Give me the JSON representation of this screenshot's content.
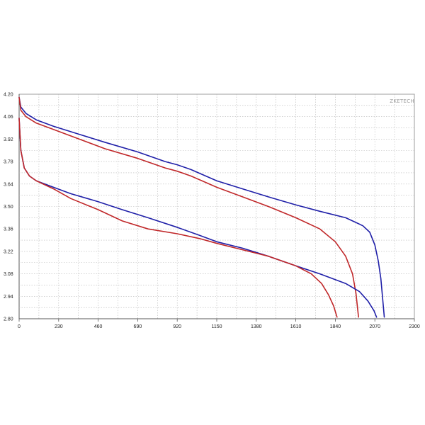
{
  "chart_data": {
    "type": "line",
    "title": "",
    "xlabel": "",
    "ylabel": "",
    "watermark": "ZKETECH",
    "xlim": [
      0,
      2300
    ],
    "ylim": [
      2.8,
      4.2
    ],
    "x_ticks": [
      "0",
      "230",
      "460",
      "690",
      "920",
      "1150",
      "1380",
      "1610",
      "1840",
      "2070",
      "2300"
    ],
    "y_ticks": [
      "4.20",
      "4.06",
      "3.92",
      "3.78",
      "3.64",
      "3.50",
      "3.36",
      "3.22",
      "3.08",
      "2.94",
      "2.80"
    ],
    "grid": true,
    "legend": "none",
    "colors": {
      "blue": "#1f1fa8",
      "red": "#c0282a"
    },
    "series": [
      {
        "color": "blue",
        "points": [
          [
            0,
            4.18
          ],
          [
            10,
            4.12
          ],
          [
            40,
            4.08
          ],
          [
            100,
            4.04
          ],
          [
            200,
            4.0
          ],
          [
            350,
            3.95
          ],
          [
            500,
            3.9
          ],
          [
            690,
            3.84
          ],
          [
            850,
            3.78
          ],
          [
            920,
            3.76
          ],
          [
            1000,
            3.73
          ],
          [
            1150,
            3.66
          ],
          [
            1300,
            3.61
          ],
          [
            1450,
            3.56
          ],
          [
            1610,
            3.51
          ],
          [
            1750,
            3.47
          ],
          [
            1900,
            3.43
          ],
          [
            2000,
            3.38
          ],
          [
            2040,
            3.34
          ],
          [
            2070,
            3.26
          ],
          [
            2090,
            3.16
          ],
          [
            2105,
            3.05
          ],
          [
            2115,
            2.93
          ],
          [
            2125,
            2.81
          ]
        ]
      },
      {
        "color": "red",
        "points": [
          [
            0,
            4.18
          ],
          [
            10,
            4.1
          ],
          [
            40,
            4.06
          ],
          [
            100,
            4.02
          ],
          [
            200,
            3.98
          ],
          [
            350,
            3.92
          ],
          [
            500,
            3.86
          ],
          [
            690,
            3.8
          ],
          [
            850,
            3.74
          ],
          [
            920,
            3.72
          ],
          [
            1000,
            3.69
          ],
          [
            1150,
            3.62
          ],
          [
            1300,
            3.56
          ],
          [
            1450,
            3.5
          ],
          [
            1610,
            3.43
          ],
          [
            1750,
            3.36
          ],
          [
            1840,
            3.28
          ],
          [
            1900,
            3.19
          ],
          [
            1940,
            3.08
          ],
          [
            1960,
            2.96
          ],
          [
            1975,
            2.81
          ]
        ]
      },
      {
        "color": "blue",
        "points": [
          [
            0,
            4.05
          ],
          [
            10,
            3.85
          ],
          [
            30,
            3.74
          ],
          [
            60,
            3.69
          ],
          [
            100,
            3.66
          ],
          [
            200,
            3.62
          ],
          [
            300,
            3.58
          ],
          [
            460,
            3.53
          ],
          [
            600,
            3.48
          ],
          [
            750,
            3.43
          ],
          [
            920,
            3.37
          ],
          [
            1050,
            3.32
          ],
          [
            1150,
            3.28
          ],
          [
            1300,
            3.24
          ],
          [
            1450,
            3.19
          ],
          [
            1610,
            3.13
          ],
          [
            1750,
            3.08
          ],
          [
            1900,
            3.02
          ],
          [
            1980,
            2.97
          ],
          [
            2030,
            2.91
          ],
          [
            2065,
            2.85
          ],
          [
            2080,
            2.81
          ]
        ]
      },
      {
        "color": "red",
        "points": [
          [
            0,
            4.05
          ],
          [
            10,
            3.85
          ],
          [
            30,
            3.74
          ],
          [
            60,
            3.69
          ],
          [
            100,
            3.66
          ],
          [
            200,
            3.61
          ],
          [
            300,
            3.55
          ],
          [
            460,
            3.48
          ],
          [
            600,
            3.41
          ],
          [
            750,
            3.36
          ],
          [
            920,
            3.33
          ],
          [
            1050,
            3.3
          ],
          [
            1150,
            3.27
          ],
          [
            1300,
            3.23
          ],
          [
            1450,
            3.19
          ],
          [
            1610,
            3.13
          ],
          [
            1700,
            3.08
          ],
          [
            1760,
            3.02
          ],
          [
            1800,
            2.95
          ],
          [
            1830,
            2.88
          ],
          [
            1850,
            2.81
          ]
        ]
      }
    ]
  }
}
